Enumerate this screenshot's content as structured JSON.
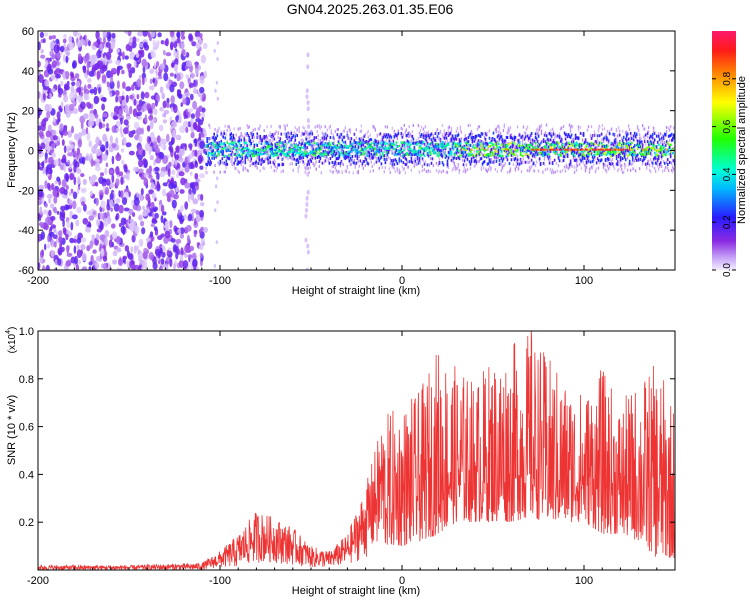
{
  "title": "GN04.2025.263.01.35.E06",
  "chart_data": [
    {
      "type": "heatmap",
      "name": "spectrogram",
      "xlabel": "Height of straight line (km)",
      "ylabel": "Frequency (Hz)",
      "xlim": [
        -200,
        150
      ],
      "ylim": [
        -60,
        60
      ],
      "x_ticks": [
        "-200",
        "-100",
        "0",
        "100"
      ],
      "y_ticks": [
        "-60",
        "-40",
        "-20",
        "0",
        "20",
        "40",
        "60"
      ],
      "colorbar": {
        "label": "Normalized spectral amplitude",
        "range": [
          0.0,
          1.0
        ],
        "ticks": [
          "0.0",
          "0.2",
          "0.4",
          "0.6",
          "0.8"
        ]
      },
      "features": [
        {
          "description": "broadband noise",
          "x_range": [
            -200,
            -108
          ],
          "freq_range": [
            -60,
            60
          ],
          "amplitude": 0.1
        },
        {
          "description": "narrow band signal",
          "x_range": [
            -108,
            150
          ],
          "center_freq": 0,
          "half_width_hz": 5,
          "amplitude_peak": 0.95,
          "peak_x_range": [
            70,
            125
          ]
        },
        {
          "description": "faint vertical streak",
          "x": -52,
          "freq_range": [
            -60,
            50
          ],
          "amplitude": 0.05
        }
      ]
    },
    {
      "type": "line",
      "name": "snr",
      "xlabel": "Height of straight line (km)",
      "ylabel": "SNR (10 * v/v)",
      "scale_label": "(x10",
      "scale_exponent": "4",
      "xlim": [
        -200,
        150
      ],
      "ylim": [
        0,
        1.0
      ],
      "x_ticks": [
        "-200",
        "-100",
        "0",
        "100"
      ],
      "y_ticks": [
        "0.2",
        "0.4",
        "0.6",
        "0.8",
        "1.0"
      ],
      "color": "#ee3333",
      "envelope": {
        "x": [
          -200,
          -150,
          -110,
          -100,
          -90,
          -80,
          -70,
          -60,
          -50,
          -40,
          -30,
          -20,
          -10,
          0,
          10,
          20,
          30,
          40,
          50,
          60,
          70,
          80,
          90,
          100,
          110,
          120,
          130,
          140,
          150
        ],
        "min": [
          0.0,
          0.0,
          0.0,
          0.01,
          0.01,
          0.03,
          0.03,
          0.02,
          0.01,
          0.01,
          0.02,
          0.05,
          0.1,
          0.1,
          0.12,
          0.15,
          0.2,
          0.2,
          0.2,
          0.2,
          0.22,
          0.2,
          0.2,
          0.2,
          0.15,
          0.15,
          0.12,
          0.05,
          0.05
        ],
        "max": [
          0.02,
          0.02,
          0.03,
          0.08,
          0.15,
          0.25,
          0.22,
          0.18,
          0.1,
          0.08,
          0.15,
          0.35,
          0.65,
          0.7,
          0.75,
          0.95,
          0.85,
          0.8,
          0.9,
          0.95,
          1.0,
          0.9,
          0.8,
          0.75,
          0.85,
          0.7,
          0.8,
          0.87,
          0.7
        ]
      },
      "peak": {
        "x": 71,
        "y": 1.0
      }
    }
  ]
}
